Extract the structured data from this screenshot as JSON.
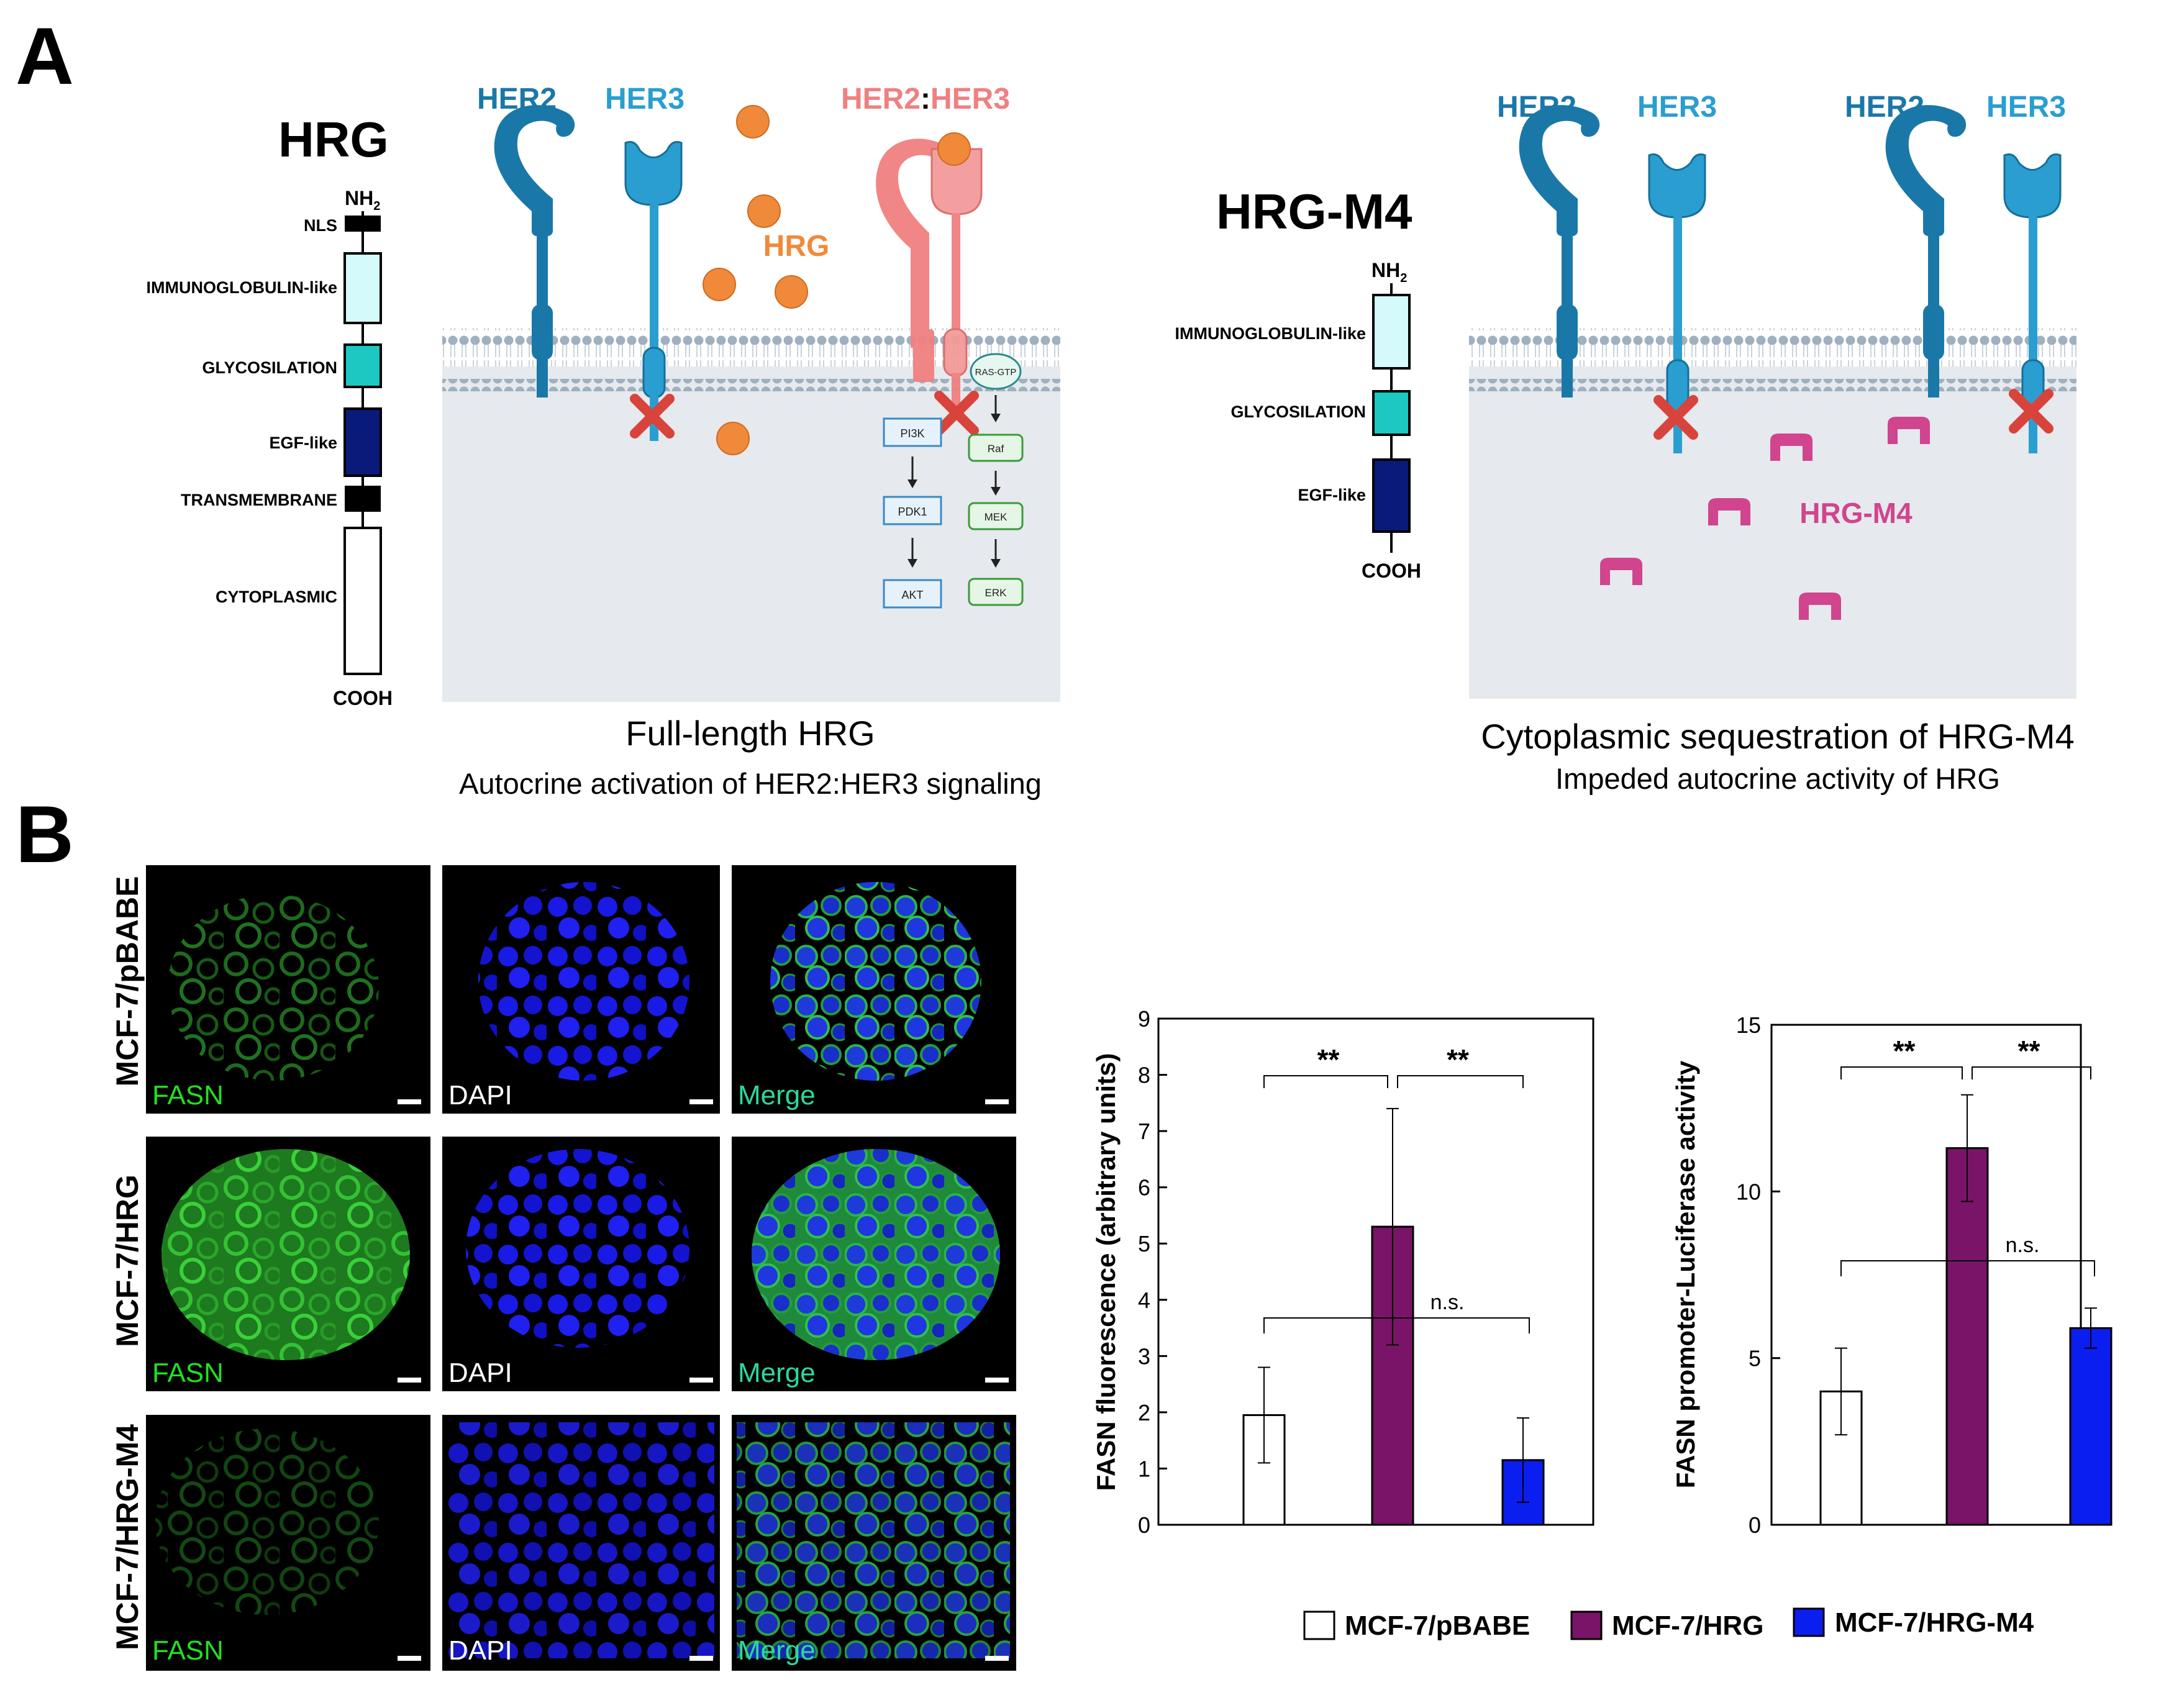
{
  "panels": {
    "a": "A",
    "b": "B"
  },
  "panel_a_left": {
    "domain_title": "HRG",
    "n_term": "NH",
    "n_term_sub": "2",
    "c_term": "COOH",
    "domains": [
      "NLS",
      "IMMUNOGLOBULIN-like",
      "GLYCOSILATION",
      "EGF-like",
      "TRANSMEMBRANE",
      "CYTOPLASMIC"
    ],
    "receptors": {
      "her2": "HER2",
      "her3": "HER3",
      "dimer_a": "HER2",
      "colon": ":",
      "dimer_b": "HER3"
    },
    "ligand": "HRG",
    "pathway_left": [
      "PI3K",
      "PDK1",
      "AKT"
    ],
    "pathway_right": [
      "RAS-GTP",
      "Raf",
      "MEK",
      "ERK"
    ],
    "caption_title": "Full-length HRG",
    "caption_sub": "Autocrine activation of HER2:HER3 signaling"
  },
  "panel_a_right": {
    "domain_title": "HRG-M4",
    "n_term": "NH",
    "n_term_sub": "2",
    "c_term": "COOH",
    "domains": [
      "IMMUNOGLOBULIN-like",
      "GLYCOSILATION",
      "EGF-like"
    ],
    "receptors": [
      "HER2",
      "HER3",
      "HER2",
      "HER3"
    ],
    "ligand": "HRG-M4",
    "caption_title": "Cytoplasmic sequestration of HRG-M4",
    "caption_sub": "Impeded autocrine activity of HRG"
  },
  "micrographs": {
    "rows": [
      "MCF-7/pBABE",
      "MCF-7/HRG",
      "MCF-7/HRG-M4"
    ],
    "channels": [
      "FASN",
      "DAPI",
      "Merge"
    ]
  },
  "chart_data": [
    {
      "type": "bar",
      "categories": [
        "MCF-7/pBABE",
        "MCF-7/HRG",
        "MCF-7/HRG-M4"
      ],
      "values": [
        1.95,
        5.3,
        1.15
      ],
      "errors": [
        0.85,
        2.1,
        0.75
      ],
      "ylabel": "FASN fluorescence (arbitrary units)",
      "ylim": [
        0,
        9
      ],
      "yticks": [
        "0",
        "1",
        "2",
        "3",
        "4",
        "5",
        "6",
        "7",
        "8",
        "9"
      ],
      "annotations": [
        "**",
        "**",
        "n.s."
      ]
    },
    {
      "type": "bar",
      "categories": [
        "MCF-7/pBABE",
        "MCF-7/HRG",
        "MCF-7/HRG-M4"
      ],
      "values": [
        4.0,
        11.3,
        5.9
      ],
      "errors": [
        1.3,
        1.6,
        0.6
      ],
      "ylabel": "FASN promoter-Luciferase activity",
      "ylim": [
        0,
        15
      ],
      "yticks": [
        "0",
        "5",
        "10",
        "15"
      ],
      "annotations": [
        "**",
        "**",
        "n.s."
      ]
    }
  ],
  "legend": {
    "items": [
      "MCF-7/pBABE",
      "MCF-7/HRG",
      "MCF-7/HRG-M4"
    ]
  },
  "colors": {
    "her2": "#1a78a8",
    "her3": "#2a9ed0",
    "dimer": "#f08080",
    "ligand": "#f08a3a",
    "hrg_m4": "#d0458e",
    "inhibit": "#d8443c",
    "membrane_bg": "#e6e9ed",
    "pbabe_bar": "#ffffff",
    "hrg_bar": "#7a1468",
    "m4_bar": "#0a1ef0",
    "fasn_label": "#22e022",
    "merge_label": "#2ed89c"
  }
}
